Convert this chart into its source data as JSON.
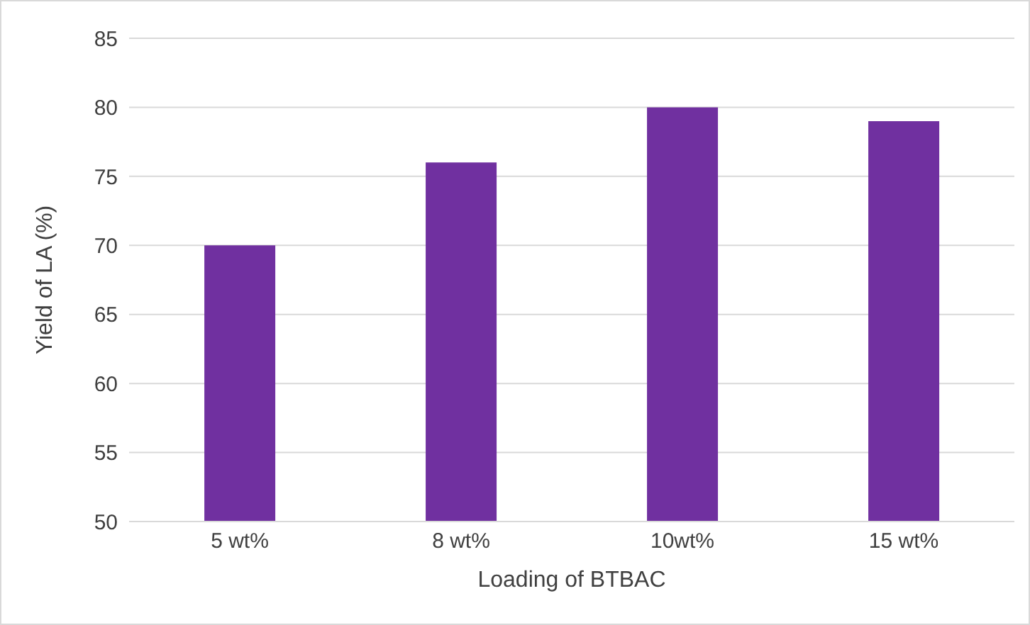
{
  "chart_data": {
    "type": "bar",
    "xlabel": "Loading of BTBAC",
    "ylabel": "Yield of LA (%)",
    "categories": [
      "5 wt%",
      "8 wt%",
      "10wt%",
      "15 wt%"
    ],
    "series": [
      {
        "color": "#7030a0",
        "values": [
          70,
          76,
          80,
          79
        ]
      }
    ],
    "ylim": [
      50,
      85
    ],
    "yticks": [
      50,
      55,
      60,
      65,
      70,
      75,
      80,
      85
    ],
    "grid": "y",
    "legend": false
  }
}
